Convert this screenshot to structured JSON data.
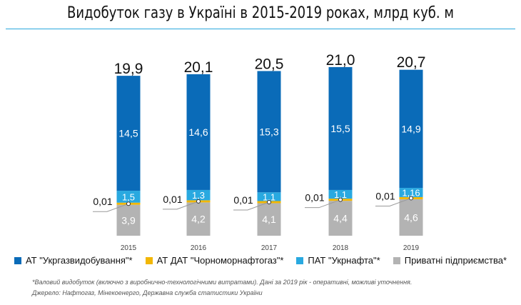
{
  "chart_data": {
    "type": "bar",
    "stacked": true,
    "title": "Видобуток газу в Україні в 2015-2019 роках, млрд куб. м",
    "categories": [
      "2015",
      "2016",
      "2017",
      "2018",
      "2019"
    ],
    "series": [
      {
        "name": "Приватні підприємства*",
        "color": "#b3b3b3",
        "values": [
          3.9,
          4.2,
          4.1,
          4.4,
          4.6
        ],
        "labels": [
          "3,9",
          "4,2",
          "4,1",
          "4,4",
          "4,6"
        ]
      },
      {
        "name": "АТ ДАТ \"Чорноморнафтогаз\"*",
        "color": "#f2b705",
        "values": [
          0.01,
          0.01,
          0.01,
          0.01,
          0.01
        ],
        "labels": [
          "0,01",
          "0,01",
          "0,01",
          "0,01",
          "0,01"
        ]
      },
      {
        "name": "ПАТ \"Укрнафта\"*",
        "color": "#29a9e0",
        "values": [
          1.5,
          1.3,
          1.1,
          1.1,
          1.16
        ],
        "labels": [
          "1,5",
          "1,3",
          "1,1",
          "1,1",
          "1,16"
        ]
      },
      {
        "name": "АТ \"Укргазвидобування\"*",
        "color": "#0a6bb8",
        "values": [
          14.5,
          14.6,
          15.3,
          15.5,
          14.9
        ],
        "labels": [
          "14,5",
          "14,6",
          "15,3",
          "15,5",
          "14,9"
        ]
      }
    ],
    "totals": [
      "19,9",
      "20,1",
      "20,5",
      "21,0",
      "20,7"
    ],
    "total_values": [
      19.9,
      20.1,
      20.5,
      21.0,
      20.7
    ],
    "legend_order": [
      3,
      1,
      2,
      0
    ],
    "legend": "bottom"
  },
  "notes": {
    "footnote": "*Валовий видобуток (включно з виробнично-технологічними витратами). Дані за 2019 рік - оперативні, можливі уточнення.",
    "source": "Джерело: Нафтогаз, Мінекоенерго, Державна служба статистики України"
  }
}
